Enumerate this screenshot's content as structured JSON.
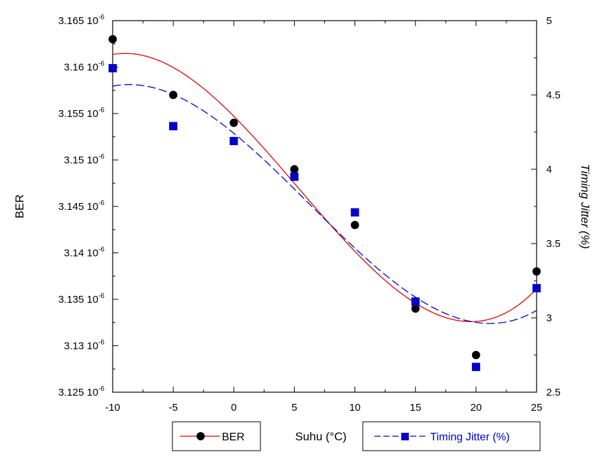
{
  "chart_data": {
    "type": "scatter",
    "xlabel": "Suhu (°C)",
    "ylabel": "BER",
    "y2label": "Timing Jitter (%)",
    "x": [
      -10,
      -5,
      0,
      5,
      10,
      15,
      20,
      25
    ],
    "xlim": [
      -10,
      25
    ],
    "xticks": [
      "-10",
      "-5",
      "0",
      "5",
      "10",
      "15",
      "20",
      "25"
    ],
    "ylim": [
      3.125,
      3.165
    ],
    "yticks": [
      {
        "mantissa": "3.165",
        "exp": "-6",
        "value": 3.165
      },
      {
        "mantissa": "3.16",
        "exp": "-6",
        "value": 3.16
      },
      {
        "mantissa": "3.155",
        "exp": "-6",
        "value": 3.155
      },
      {
        "mantissa": "3.15",
        "exp": "-6",
        "value": 3.15
      },
      {
        "mantissa": "3.145",
        "exp": "-6",
        "value": 3.145
      },
      {
        "mantissa": "3.14",
        "exp": "-6",
        "value": 3.14
      },
      {
        "mantissa": "3.135",
        "exp": "-6",
        "value": 3.135
      },
      {
        "mantissa": "3.13",
        "exp": "-6",
        "value": 3.13
      },
      {
        "mantissa": "3.125",
        "exp": "-6",
        "value": 3.125
      }
    ],
    "y2lim": [
      2.5,
      5
    ],
    "y2ticks": [
      "2.5",
      "3",
      "3.5",
      "4",
      "4.5",
      "5"
    ],
    "grid": false,
    "series": [
      {
        "name": "BER",
        "axis": "left",
        "unit_multiplier": "1e-6",
        "marker": "circle",
        "marker_color": "#000000",
        "fit_color": "#e00000",
        "fit_style": "solid",
        "values": [
          3.163,
          3.157,
          3.154,
          3.149,
          3.143,
          3.134,
          3.129,
          3.138
        ]
      },
      {
        "name": "Timing Jitter (%)",
        "axis": "right",
        "marker": "square",
        "marker_color": "#0000c8",
        "fit_color": "#0000c8",
        "fit_style": "dashed",
        "values": [
          4.68,
          4.29,
          4.19,
          3.95,
          3.71,
          3.11,
          2.67,
          3.2
        ]
      }
    ],
    "legend": {
      "left_entry": "BER",
      "center_label": "Suhu (°C)",
      "right_entry": "Timing Jitter (%)",
      "placement": "bottom"
    }
  }
}
